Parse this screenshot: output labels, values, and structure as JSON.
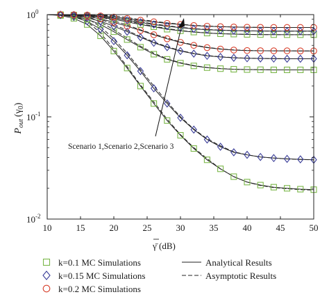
{
  "chart_data": {
    "type": "line",
    "xlabel": "γ̄ (dB)",
    "ylabel": "P_out (γ_0)",
    "ylabel_main": "P",
    "ylabel_sub": "out",
    "ylabel_arg": "(γ",
    "ylabel_arg_sub": "0",
    "ylabel_close": ")",
    "xlim": [
      10,
      50
    ],
    "ylim": [
      0.01,
      1
    ],
    "yscale": "log",
    "x_ticks": [
      10,
      15,
      20,
      25,
      30,
      35,
      40,
      45,
      50
    ],
    "y_ticks": [
      {
        "value": 1,
        "base": "10",
        "exp": "0"
      },
      {
        "value": 0.1,
        "base": "10",
        "exp": "-1"
      },
      {
        "value": 0.01,
        "base": "10",
        "exp": "-2"
      }
    ],
    "annotation": "Scenario 1,Scenario 2,Scenario 3",
    "colors": {
      "k01": "#7ab648",
      "k015": "#3a3d98",
      "k02": "#d8402c",
      "line": "#222222"
    },
    "marker_x": [
      12,
      14,
      16,
      18,
      20,
      22,
      24,
      26,
      28,
      30,
      32,
      34,
      36,
      38,
      40,
      42,
      44,
      46,
      48,
      50
    ],
    "series": [
      {
        "k": "k01",
        "scenario": 1,
        "marker": "square",
        "x": [
          10,
          12,
          14,
          16,
          18,
          20,
          22,
          24,
          26,
          28,
          30,
          32,
          34,
          36,
          38,
          40,
          42,
          44,
          46,
          48,
          50
        ],
        "analytical": [
          1.0,
          0.98,
          0.92,
          0.8,
          0.62,
          0.44,
          0.3,
          0.2,
          0.135,
          0.092,
          0.066,
          0.049,
          0.038,
          0.031,
          0.026,
          0.023,
          0.0215,
          0.0205,
          0.02,
          0.0196,
          0.0194
        ],
        "asymptotic": [
          1.0,
          1.0,
          0.97,
          0.86,
          0.66,
          0.46,
          0.31,
          0.205,
          0.14,
          0.095,
          0.067,
          0.05,
          0.039,
          0.031,
          0.026,
          0.023,
          0.0213,
          0.0203,
          0.0198,
          0.0194,
          0.0192
        ]
      },
      {
        "k": "k015",
        "scenario": 1,
        "marker": "diamond",
        "x": [
          10,
          12,
          14,
          16,
          18,
          20,
          22,
          24,
          26,
          28,
          30,
          32,
          34,
          36,
          38,
          40,
          42,
          44,
          46,
          48,
          50
        ],
        "analytical": [
          1.0,
          0.99,
          0.95,
          0.86,
          0.72,
          0.55,
          0.4,
          0.28,
          0.19,
          0.135,
          0.098,
          0.075,
          0.06,
          0.051,
          0.045,
          0.0425,
          0.0405,
          0.0395,
          0.0388,
          0.0384,
          0.038
        ],
        "asymptotic": [
          1.0,
          1.0,
          0.99,
          0.92,
          0.76,
          0.58,
          0.42,
          0.29,
          0.2,
          0.14,
          0.1,
          0.076,
          0.061,
          0.052,
          0.0455,
          0.0425,
          0.0405,
          0.0395,
          0.0387,
          0.0383,
          0.0379
        ]
      },
      {
        "k": "k01",
        "scenario": 2,
        "marker": "square",
        "x": [
          10,
          12,
          14,
          16,
          18,
          20,
          22,
          24,
          26,
          28,
          30,
          32,
          34,
          36,
          38,
          40,
          42,
          44,
          46,
          48,
          50
        ],
        "analytical": [
          1.0,
          0.99,
          0.96,
          0.9,
          0.8,
          0.68,
          0.57,
          0.48,
          0.41,
          0.365,
          0.335,
          0.315,
          0.303,
          0.296,
          0.292,
          0.29,
          0.289,
          0.288,
          0.288,
          0.288,
          0.288
        ],
        "asymptotic": [
          1.0,
          1.0,
          1.0,
          0.96,
          0.85,
          0.71,
          0.59,
          0.49,
          0.42,
          0.37,
          0.338,
          0.317,
          0.304,
          0.297,
          0.292,
          0.29,
          0.289,
          0.288,
          0.288,
          0.288,
          0.288
        ]
      },
      {
        "k": "k015",
        "scenario": 2,
        "marker": "diamond",
        "x": [
          10,
          12,
          14,
          16,
          18,
          20,
          22,
          24,
          26,
          28,
          30,
          32,
          34,
          36,
          38,
          40,
          42,
          44,
          46,
          48,
          50
        ],
        "analytical": [
          1.0,
          0.995,
          0.975,
          0.93,
          0.86,
          0.77,
          0.68,
          0.6,
          0.53,
          0.48,
          0.44,
          0.415,
          0.395,
          0.385,
          0.378,
          0.374,
          0.372,
          0.371,
          0.37,
          0.37,
          0.37
        ],
        "asymptotic": [
          1.0,
          1.0,
          1.0,
          0.99,
          0.9,
          0.8,
          0.7,
          0.61,
          0.54,
          0.485,
          0.445,
          0.418,
          0.398,
          0.387,
          0.379,
          0.375,
          0.373,
          0.371,
          0.37,
          0.37,
          0.37
        ]
      },
      {
        "k": "k02",
        "scenario": 2,
        "marker": "circle",
        "x": [
          10,
          12,
          14,
          16,
          18,
          20,
          22,
          24,
          26,
          28,
          30,
          32,
          34,
          36,
          38,
          40,
          42,
          44,
          46,
          48,
          50
        ],
        "analytical": [
          1.0,
          0.998,
          0.985,
          0.955,
          0.91,
          0.84,
          0.77,
          0.7,
          0.635,
          0.58,
          0.535,
          0.5,
          0.475,
          0.46,
          0.45,
          0.445,
          0.443,
          0.442,
          0.442,
          0.441,
          0.441
        ],
        "asymptotic": [
          1.0,
          1.0,
          1.0,
          1.0,
          0.95,
          0.87,
          0.79,
          0.71,
          0.645,
          0.59,
          0.54,
          0.505,
          0.478,
          0.462,
          0.451,
          0.446,
          0.443,
          0.442,
          0.442,
          0.441,
          0.441
        ]
      },
      {
        "k": "k01",
        "scenario": 3,
        "marker": "square",
        "x": [
          10,
          12,
          14,
          16,
          18,
          20,
          22,
          24,
          26,
          28,
          30,
          32,
          34,
          36,
          38,
          40,
          42,
          44,
          46,
          48,
          50
        ],
        "analytical": [
          1.0,
          0.999,
          0.99,
          0.975,
          0.945,
          0.9,
          0.85,
          0.8,
          0.76,
          0.72,
          0.695,
          0.675,
          0.66,
          0.65,
          0.645,
          0.64,
          0.638,
          0.637,
          0.636,
          0.636,
          0.636
        ],
        "asymptotic": [
          1.0,
          1.0,
          1.0,
          1.0,
          0.99,
          0.93,
          0.87,
          0.815,
          0.77,
          0.73,
          0.7,
          0.678,
          0.662,
          0.651,
          0.645,
          0.641,
          0.638,
          0.637,
          0.636,
          0.636,
          0.636
        ]
      },
      {
        "k": "k015",
        "scenario": 3,
        "marker": "diamond",
        "x": [
          10,
          12,
          14,
          16,
          18,
          20,
          22,
          24,
          26,
          28,
          30,
          32,
          34,
          36,
          38,
          40,
          42,
          44,
          46,
          48,
          50
        ],
        "analytical": [
          1.0,
          0.999,
          0.993,
          0.98,
          0.955,
          0.92,
          0.88,
          0.84,
          0.8,
          0.77,
          0.745,
          0.725,
          0.712,
          0.703,
          0.697,
          0.693,
          0.691,
          0.69,
          0.689,
          0.689,
          0.689
        ],
        "asymptotic": [
          1.0,
          1.0,
          1.0,
          1.0,
          1.0,
          0.95,
          0.9,
          0.855,
          0.81,
          0.78,
          0.752,
          0.73,
          0.715,
          0.705,
          0.698,
          0.694,
          0.691,
          0.69,
          0.689,
          0.689,
          0.689
        ]
      },
      {
        "k": "k02",
        "scenario": 3,
        "marker": "circle",
        "x": [
          10,
          12,
          14,
          16,
          18,
          20,
          22,
          24,
          26,
          28,
          30,
          32,
          34,
          36,
          38,
          40,
          42,
          44,
          46,
          48,
          50
        ],
        "analytical": [
          1.0,
          1.0,
          0.996,
          0.988,
          0.97,
          0.945,
          0.915,
          0.88,
          0.85,
          0.82,
          0.8,
          0.782,
          0.77,
          0.762,
          0.756,
          0.752,
          0.75,
          0.749,
          0.748,
          0.748,
          0.748
        ],
        "asymptotic": [
          1.0,
          1.0,
          1.0,
          1.0,
          1.0,
          0.975,
          0.935,
          0.895,
          0.86,
          0.83,
          0.806,
          0.786,
          0.773,
          0.764,
          0.757,
          0.753,
          0.75,
          0.749,
          0.748,
          0.748,
          0.748
        ]
      }
    ],
    "legend": {
      "markers": [
        {
          "key": "k01",
          "marker": "square",
          "label": "k=0.1 MC Simulations"
        },
        {
          "key": "k015",
          "marker": "diamond",
          "label": "k=0.15 MC Simulations"
        },
        {
          "key": "k02",
          "marker": "circle",
          "label": "k=0.2 MC Simulations"
        }
      ],
      "lines": [
        {
          "style": "solid",
          "label": "Analytical Results"
        },
        {
          "style": "dashed",
          "label": "Asymptotic Results"
        }
      ],
      "placement": "bottom"
    }
  }
}
